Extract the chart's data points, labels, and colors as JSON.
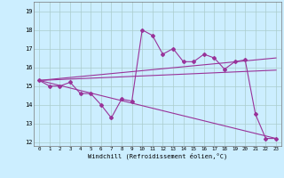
{
  "xlabel": "Windchill (Refroidissement éolien,°C)",
  "x_ticks": [
    0,
    1,
    2,
    3,
    4,
    5,
    6,
    7,
    8,
    9,
    10,
    11,
    12,
    13,
    14,
    15,
    16,
    17,
    18,
    19,
    20,
    21,
    22,
    23
  ],
  "ylim": [
    11.8,
    19.5
  ],
  "xlim": [
    -0.5,
    23.5
  ],
  "yticks": [
    12,
    13,
    14,
    15,
    16,
    17,
    18,
    19
  ],
  "background_color": "#cceeff",
  "line_color": "#993399",
  "grid_color": "#aacccc",
  "series1_x": [
    0,
    1,
    2,
    3,
    4,
    5,
    6,
    7,
    8,
    9,
    10,
    11,
    12,
    13,
    14,
    15,
    16,
    17,
    18,
    19,
    20,
    21,
    22,
    23
  ],
  "series1_y": [
    15.3,
    15.0,
    15.0,
    15.2,
    14.6,
    14.6,
    14.0,
    13.3,
    14.3,
    14.2,
    18.0,
    17.7,
    16.7,
    17.0,
    16.3,
    16.3,
    16.7,
    16.5,
    15.9,
    16.3,
    16.4,
    13.5,
    12.2,
    12.2
  ],
  "series2_x": [
    0,
    23
  ],
  "series2_y": [
    15.3,
    12.2
  ],
  "series3_x": [
    0,
    23
  ],
  "series3_y": [
    15.3,
    16.5
  ],
  "series4_x": [
    0,
    23
  ],
  "series4_y": [
    15.3,
    15.85
  ],
  "marker": "D",
  "markersize": 2,
  "linewidth": 0.8
}
